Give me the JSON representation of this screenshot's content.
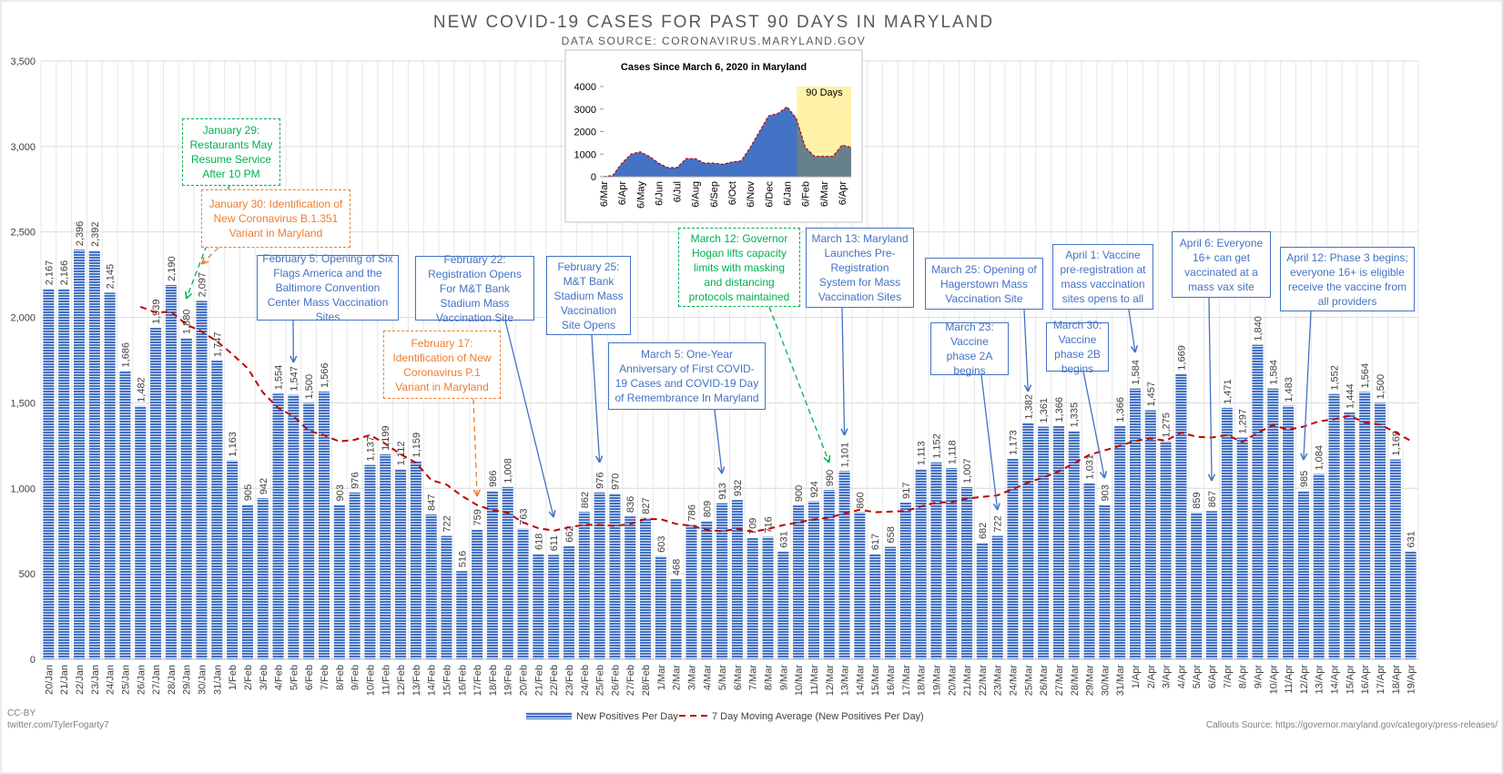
{
  "chart_data": [
    {
      "type": "bar",
      "title": "NEW COVID-19 CASES FOR PAST 90 DAYS IN MARYLAND",
      "subtitle": "DATA SOURCE: CORONAVIRUS.MARYLAND.GOV",
      "categories": [
        "20/Jan",
        "21/Jan",
        "22/Jan",
        "23/Jan",
        "24/Jan",
        "25/Jan",
        "26/Jan",
        "27/Jan",
        "28/Jan",
        "29/Jan",
        "30/Jan",
        "31/Jan",
        "1/Feb",
        "2/Feb",
        "3/Feb",
        "4/Feb",
        "5/Feb",
        "6/Feb",
        "7/Feb",
        "8/Feb",
        "9/Feb",
        "10/Feb",
        "11/Feb",
        "12/Feb",
        "13/Feb",
        "14/Feb",
        "15/Feb",
        "16/Feb",
        "17/Feb",
        "18/Feb",
        "19/Feb",
        "20/Feb",
        "21/Feb",
        "22/Feb",
        "23/Feb",
        "24/Feb",
        "25/Feb",
        "26/Feb",
        "27/Feb",
        "28/Feb",
        "1/Mar",
        "2/Mar",
        "3/Mar",
        "4/Mar",
        "5/Mar",
        "6/Mar",
        "7/Mar",
        "8/Mar",
        "9/Mar",
        "10/Mar",
        "11/Mar",
        "12/Mar",
        "13/Mar",
        "14/Mar",
        "15/Mar",
        "16/Mar",
        "17/Mar",
        "18/Mar",
        "19/Mar",
        "20/Mar",
        "21/Mar",
        "22/Mar",
        "23/Mar",
        "24/Mar",
        "25/Mar",
        "26/Mar",
        "27/Mar",
        "28/Mar",
        "29/Mar",
        "30/Mar",
        "31/Mar",
        "1/Apr",
        "2/Apr",
        "3/Apr",
        "4/Apr",
        "5/Apr",
        "6/Apr",
        "7/Apr",
        "8/Apr",
        "9/Apr",
        "10/Apr",
        "11/Apr",
        "12/Apr",
        "13/Apr",
        "14/Apr",
        "15/Apr",
        "16/Apr",
        "17/Apr",
        "18/Apr",
        "19/Apr"
      ],
      "series": [
        {
          "name": "New Positives Per Day",
          "color": "#4472c4",
          "values": [
            2167,
            2166,
            2396,
            2392,
            2145,
            1686,
            1482,
            1939,
            2190,
            1880,
            2097,
            1747,
            1163,
            905,
            942,
            1554,
            1547,
            1500,
            1566,
            903,
            976,
            1137,
            1199,
            1112,
            1159,
            847,
            722,
            516,
            759,
            986,
            1008,
            763,
            618,
            611,
            662,
            862,
            976,
            970,
            836,
            827,
            603,
            468,
            786,
            809,
            913,
            932,
            709,
            716,
            631,
            900,
            924,
            990,
            1101,
            860,
            617,
            658,
            917,
            1113,
            1152,
            1118,
            1007,
            682,
            722,
            1173,
            1382,
            1361,
            1366,
            1335,
            1031,
            903,
            1366,
            1584,
            1457,
            1275,
            1669,
            859,
            867,
            1471,
            1297,
            1840,
            1584,
            1483,
            985,
            1084,
            1552,
            1444,
            1564,
            1500,
            1169,
            631
          ],
          "value_labels": [
            "2,167",
            "2,166",
            "2,396",
            "2,392",
            "2,145",
            "1,686",
            "1,482",
            "1,939",
            "2,190",
            "1,880",
            "2,097",
            "1,747",
            "1,163",
            "905",
            "942",
            "1,554",
            "1,547",
            "1,500",
            "1,566",
            "903",
            "976",
            "1,137",
            "1,199",
            "1,112",
            "1,159",
            "847",
            "722",
            "516",
            "759",
            "986",
            "1,008",
            "763",
            "618",
            "611",
            "662",
            "862",
            "976",
            "970",
            "836",
            "827",
            "603",
            "468",
            "786",
            "809",
            "913",
            "932",
            "709",
            "716",
            "631",
            "900",
            "924",
            "990",
            "1,101",
            "860",
            "617",
            "658",
            "917",
            "1,113",
            "1,152",
            "1,118",
            "1,007",
            "682",
            "722",
            "1,173",
            "1,382",
            "1,361",
            "1,366",
            "1,335",
            "1,031",
            "903",
            "1,366",
            "1,584",
            "1,457",
            "1,275",
            "1,669",
            "859",
            "867",
            "1,471",
            "1,297",
            "1,840",
            "1,584",
            "1,483",
            "985",
            "1,084",
            "1,552",
            "1,444",
            "1,564",
            "1,500",
            "1,169",
            "631"
          ]
        },
        {
          "name": "7 Day Moving Average (New Positives Per Day)",
          "color": "#c00000",
          "type": "line",
          "values": [
            null,
            null,
            null,
            null,
            null,
            null,
            2062,
            2029,
            2033,
            1959,
            1917,
            1860,
            1785,
            1703,
            1561,
            1470,
            1422,
            1337,
            1311,
            1274,
            1284,
            1312,
            1261,
            1199,
            1150,
            1048,
            1022,
            956,
            902,
            872,
            857,
            800,
            767,
            752,
            772,
            787,
            786,
            780,
            791,
            821,
            819,
            792,
            781,
            757,
            749,
            763,
            746,
            762,
            785,
            801,
            818,
            829,
            853,
            875,
            860,
            864,
            867,
            894,
            917,
            919,
            940,
            950,
            959,
            995,
            1034,
            1064,
            1099,
            1146,
            1196,
            1222,
            1249,
            1278,
            1292,
            1279,
            1326,
            1302,
            1297,
            1312,
            1271,
            1325,
            1370,
            1343,
            1361,
            1392,
            1404,
            1425,
            1385,
            1373,
            1328,
            1278
          ]
        }
      ],
      "ylim": [
        0,
        3500
      ],
      "yticks": [
        0,
        500,
        {
          "value": 1000,
          "label": "1,000"
        },
        {
          "value": 1500,
          "label": "1,500"
        },
        {
          "value": 2000,
          "label": "2,000"
        },
        {
          "value": 2500,
          "label": "2,500"
        },
        {
          "value": 3000,
          "label": "3,000"
        },
        {
          "value": 3500,
          "label": "3,500"
        }
      ],
      "grid": true,
      "legend": "bottom",
      "annotations": [
        {
          "text": "January 29: Restaurants May Resume Service After 10 PM",
          "color": "#00b050",
          "border": "dashed"
        },
        {
          "text": "January 30: Identification of New Coronavirus B.1.351 Variant in Maryland",
          "color": "#ed7d31",
          "border": "dashed"
        },
        {
          "text": "February 5: Opening of Six Flags America and the Baltimore Convention Center Mass Vaccination Sites",
          "color": "#4472c4",
          "border": "solid"
        },
        {
          "text": "February 22: Registration Opens For M&T Bank Stadium Mass Vaccination Site",
          "color": "#4472c4",
          "border": "solid"
        },
        {
          "text": "February 25: M&T Bank Stadium Mass Vaccination Site Opens",
          "color": "#4472c4",
          "border": "solid"
        },
        {
          "text": "February 17: Identification of New Coronavirus P.1 Variant in Maryland",
          "color": "#ed7d31",
          "border": "dashed"
        },
        {
          "text": "March 5: One-Year Anniversary of First COVID-19 Cases and COVID-19 Day of Remembrance In Maryland",
          "color": "#4472c4",
          "border": "solid"
        },
        {
          "text": "March 12: Governor Hogan lifts capacity limits with masking and distancing protocols maintained",
          "color": "#00b050",
          "border": "dashed"
        },
        {
          "text": "March 13: Maryland Launches Pre-Registration System for Mass Vaccination Sites",
          "color": "#4472c4",
          "border": "solid"
        },
        {
          "text": "March 25: Opening of Hagerstown Mass Vaccination Site",
          "color": "#4472c4",
          "border": "solid"
        },
        {
          "text": "March 23: Vaccine phase 2A begins",
          "color": "#4472c4",
          "border": "solid"
        },
        {
          "text": "April 1: Vaccine pre-registration at mass vaccination sites opens to all",
          "color": "#4472c4",
          "border": "solid"
        },
        {
          "text": "March 30: Vaccine phase 2B begins",
          "color": "#4472c4",
          "border": "solid"
        },
        {
          "text": "April 6: Everyone 16+ can get vaccinated at a mass vax site",
          "color": "#4472c4",
          "border": "solid"
        },
        {
          "text": "April 12: Phase 3 begins; everyone 16+ is eligible receive the vaccine from all providers",
          "color": "#4472c4",
          "border": "solid"
        }
      ],
      "footer_left": [
        "CC-BY",
        "twitter.com/TylerFogarty7"
      ],
      "footer_right": "Callouts Source: https://governor.maryland.gov/category/press-releases/"
    },
    {
      "type": "area",
      "title": "Cases Since March 6, 2020 in Maryland",
      "categories": [
        "6/Mar",
        null,
        "6/Apr",
        null,
        "6/May",
        null,
        "6/Jun",
        null,
        "6/Jul",
        null,
        "6/Aug",
        null,
        "6/Sep",
        null,
        "6/Oct",
        null,
        "6/Nov",
        null,
        "6/Dec",
        null,
        "6/Jan",
        null,
        "6/Feb",
        null,
        "6/Mar",
        null,
        "6/Apr",
        null
      ],
      "values": [
        0,
        50,
        600,
        1000,
        1100,
        900,
        600,
        400,
        400,
        800,
        800,
        600,
        600,
        550,
        650,
        700,
        1300,
        2000,
        2700,
        2800,
        3100,
        2600,
        1300,
        900,
        900,
        900,
        1400,
        1300
      ],
      "color": "#4472c4",
      "highlight_color": "#66808c",
      "highlight_label": "90 Days",
      "ylim": [
        0,
        4000
      ],
      "yticks": [
        0,
        1000,
        2000,
        3000,
        4000
      ]
    }
  ]
}
